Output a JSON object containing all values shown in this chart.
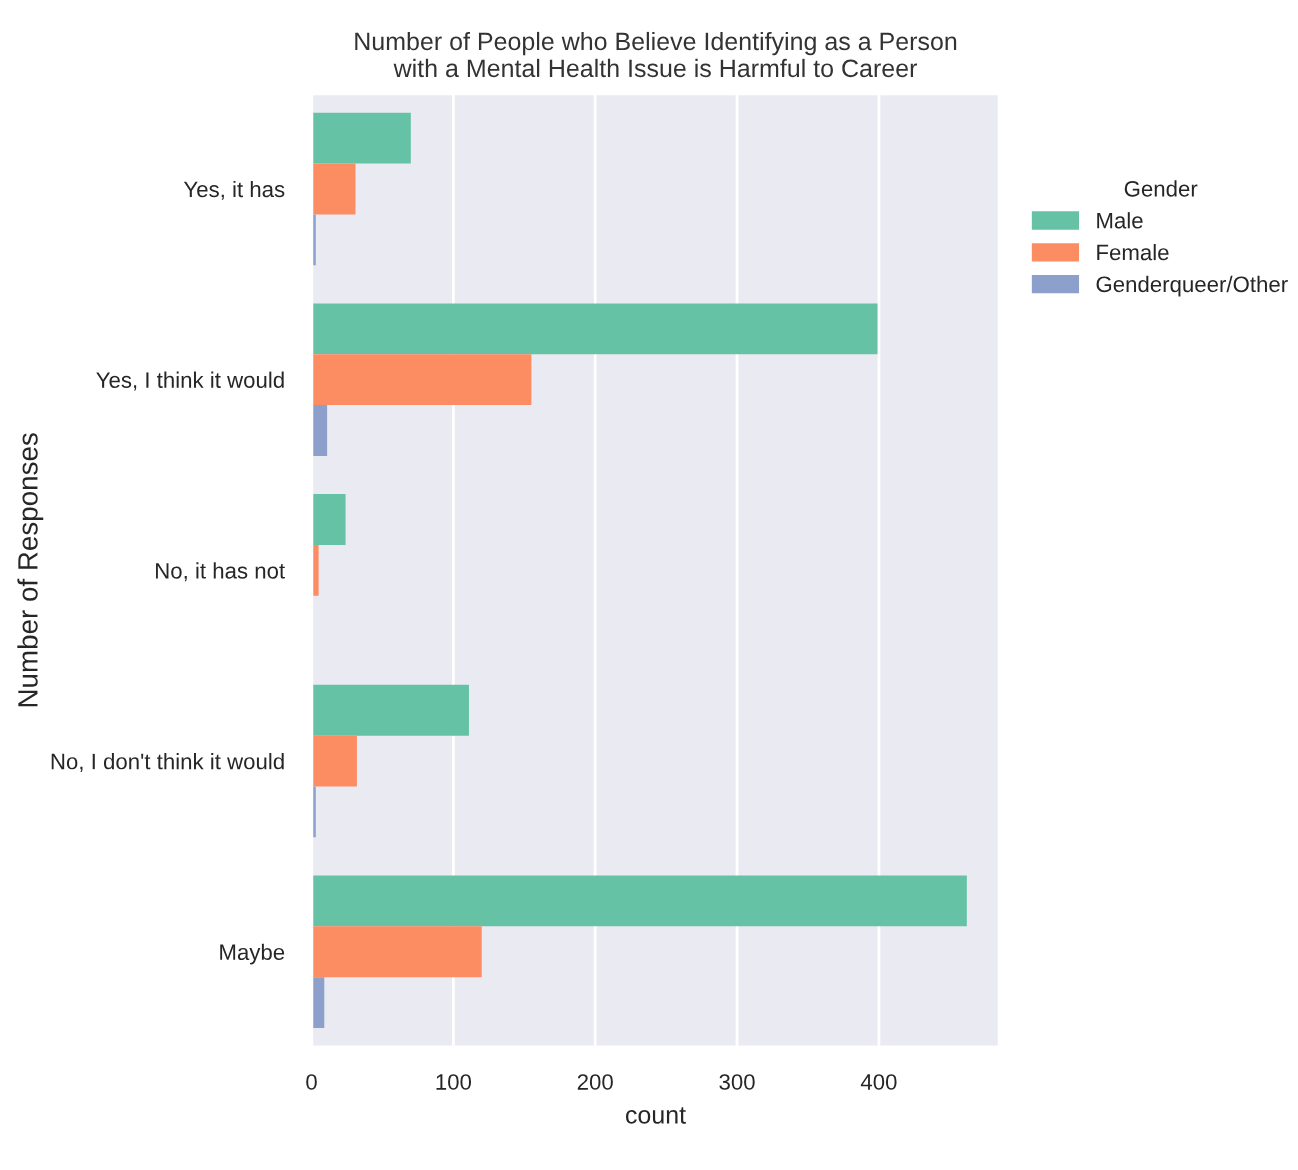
{
  "chart_data": {
    "type": "bar",
    "orientation": "horizontal",
    "title": "Number of People who Believe Identifying as a Person\nwith a Mental Health Issue is Harmful to Career",
    "xlabel": "count",
    "ylabel": "Number of Responses",
    "legend_title": "Gender",
    "legend": "right",
    "categories": [
      "Yes, it has",
      "Yes, I think it would",
      "No, it has not",
      "No, I don't think it would",
      "Maybe"
    ],
    "series": [
      {
        "name": "Male",
        "color": "#66c2a5",
        "values": [
          70,
          399,
          24,
          111,
          462
        ]
      },
      {
        "name": "Female",
        "color": "#fc8d62",
        "values": [
          31,
          155,
          5,
          32,
          120
        ]
      },
      {
        "name": "Genderqueer/Other",
        "color": "#8da0cb",
        "values": [
          3,
          11,
          null,
          3,
          9
        ]
      }
    ],
    "xlim": [
      0,
      485
    ],
    "xticks": [
      0,
      100,
      200,
      300,
      400
    ],
    "grid": true
  }
}
